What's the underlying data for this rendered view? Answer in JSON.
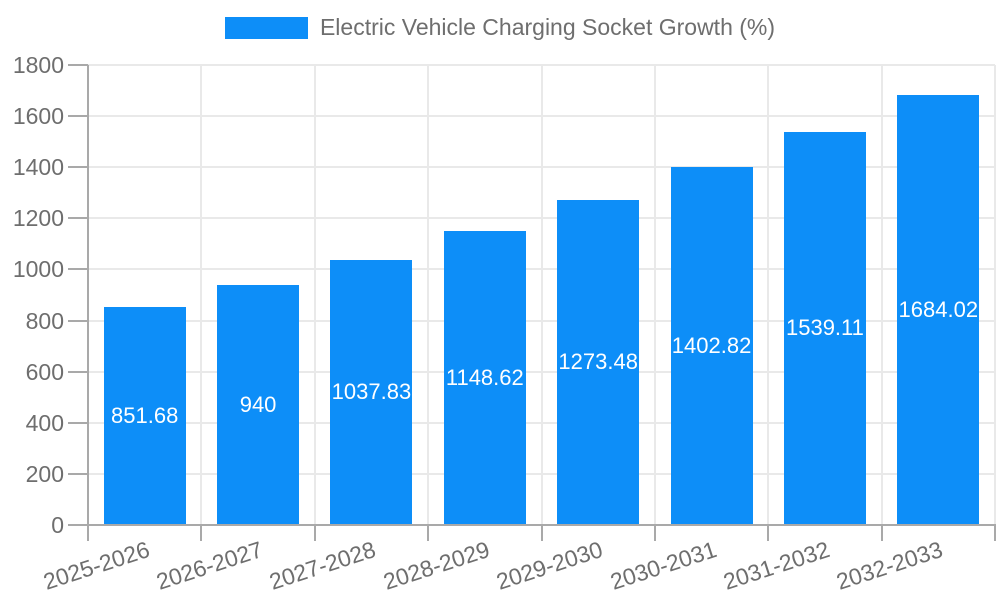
{
  "chart_data": {
    "type": "bar",
    "title": "Electric Vehicle Charging Socket Growth (%)",
    "categories": [
      "2025-2026",
      "2026-2027",
      "2027-2028",
      "2028-2029",
      "2029-2030",
      "2030-2031",
      "2031-2032",
      "2032-2033"
    ],
    "values": [
      851.68,
      940,
      1037.83,
      1148.62,
      1273.48,
      1402.82,
      1539.11,
      1684.02
    ],
    "value_labels": [
      "851.68",
      "940",
      "1037.83",
      "1148.62",
      "1273.48",
      "1402.82",
      "1539.11",
      "1684.02"
    ],
    "xlabel": "",
    "ylabel": "",
    "ylim": [
      0,
      1800
    ],
    "y_tick_labels": [
      "0",
      "200",
      "400",
      "600",
      "800",
      "1000",
      "1200",
      "1400",
      "1600",
      "1800"
    ],
    "grid": true,
    "legend_position": "top",
    "bar_color": "#0d8ef8",
    "bar_label_color": "#ffffff",
    "axis_text_color": "#6e6e6e",
    "grid_color": "#e9e9e9",
    "axis_line_color": "#a9a9a9"
  }
}
